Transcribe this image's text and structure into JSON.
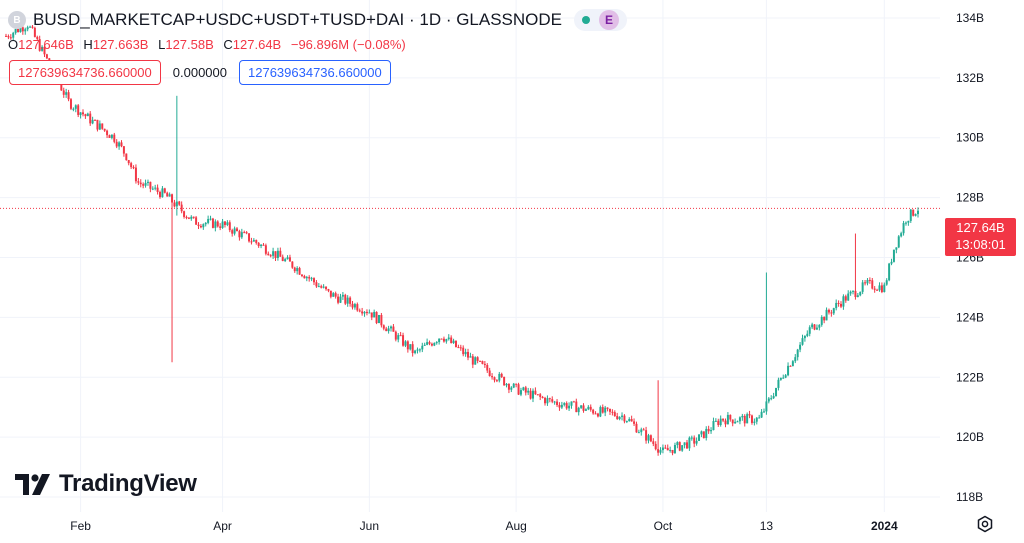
{
  "header": {
    "symbol_letter": "B",
    "title": "BUSD_MARKETCAP+USDC+USDT+TUSD+DAI · 1D · GLASSNODE",
    "indicator_letter": "E"
  },
  "ohlc": {
    "o_label": "O",
    "o_value": "127.646B",
    "h_label": "H",
    "h_value": "127.663B",
    "l_label": "L",
    "l_value": "127.58B",
    "c_label": "C",
    "c_value": "127.64B",
    "change": "−96.896M (−0.08%)"
  },
  "study_values": {
    "first": "127639634736.660000",
    "second": "0.000000",
    "third": "127639634736.660000"
  },
  "price_badge": {
    "price": "127.64B",
    "countdown": "13:08:01"
  },
  "branding": {
    "logo_text": "TradingView"
  },
  "colors": {
    "up": "#22ab94",
    "down": "#f23645",
    "grid": "#f0f3fa",
    "text": "#131722"
  },
  "chart_data": {
    "type": "candlestick",
    "interval": "1D",
    "y_axis": {
      "min": 117.5,
      "max": 134.6,
      "unit": "B",
      "ticks": [
        118,
        120,
        122,
        124,
        126,
        128,
        130,
        132,
        134
      ],
      "tick_labels": [
        "118B",
        "120B",
        "122B",
        "124B",
        "126B",
        "128B",
        "130B",
        "132B",
        "134B"
      ]
    },
    "x_axis": {
      "tick_labels": [
        "Feb",
        "Apr",
        "Jun",
        "Aug",
        "Oct",
        "13",
        "2024"
      ],
      "tick_dates": [
        "2023-02-01",
        "2023-04-01",
        "2023-06-01",
        "2023-08-01",
        "2023-10-01",
        "2023-11-13",
        "2024-01-01"
      ],
      "range": [
        "2023-01-01",
        "2024-01-15"
      ]
    },
    "grid": true,
    "last_price": 127.64,
    "key_points": [
      {
        "date": "2023-01-01",
        "close": 133.4
      },
      {
        "date": "2023-01-10",
        "close": 133.8
      },
      {
        "date": "2023-01-20",
        "close": 132.3
      },
      {
        "date": "2023-01-27",
        "close": 131.2
      },
      {
        "date": "2023-02-05",
        "close": 130.6
      },
      {
        "date": "2023-02-15",
        "close": 130.0
      },
      {
        "date": "2023-02-20",
        "close": 129.4
      },
      {
        "date": "2023-02-25",
        "close": 128.5
      },
      {
        "date": "2023-03-08",
        "close": 128.1
      },
      {
        "date": "2023-03-20",
        "close": 127.2
      },
      {
        "date": "2023-04-01",
        "close": 127.1
      },
      {
        "date": "2023-04-15",
        "close": 126.5
      },
      {
        "date": "2023-05-01",
        "close": 125.7
      },
      {
        "date": "2023-05-15",
        "close": 124.8
      },
      {
        "date": "2023-06-01",
        "close": 124.2
      },
      {
        "date": "2023-06-20",
        "close": 122.8
      },
      {
        "date": "2023-07-01",
        "close": 123.4
      },
      {
        "date": "2023-07-15",
        "close": 122.5
      },
      {
        "date": "2023-08-01",
        "close": 121.6
      },
      {
        "date": "2023-08-15",
        "close": 121.2
      },
      {
        "date": "2023-09-01",
        "close": 120.9
      },
      {
        "date": "2023-09-15",
        "close": 120.7
      },
      {
        "date": "2023-10-01",
        "close": 119.5
      },
      {
        "date": "2023-10-15",
        "close": 119.9
      },
      {
        "date": "2023-10-25",
        "close": 120.6
      },
      {
        "date": "2023-11-10",
        "close": 120.6
      },
      {
        "date": "2023-11-20",
        "close": 122.1
      },
      {
        "date": "2023-12-01",
        "close": 123.6
      },
      {
        "date": "2023-12-15",
        "close": 124.6
      },
      {
        "date": "2023-12-25",
        "close": 125.1
      },
      {
        "date": "2024-01-01",
        "close": 125.0
      },
      {
        "date": "2024-01-05",
        "close": 126.3
      },
      {
        "date": "2024-01-10",
        "close": 127.3
      },
      {
        "date": "2024-01-15",
        "close": 127.64
      }
    ],
    "wick_spikes": [
      {
        "date": "2023-03-11",
        "high": 128.0,
        "low": 122.5
      },
      {
        "date": "2023-03-13",
        "high": 131.4,
        "low": 127.4
      },
      {
        "date": "2023-09-29",
        "high": 121.9,
        "low": 119.5
      },
      {
        "date": "2023-11-13",
        "high": 125.5,
        "low": 120.9
      },
      {
        "date": "2023-12-20",
        "high": 126.8,
        "low": 124.6
      }
    ]
  }
}
